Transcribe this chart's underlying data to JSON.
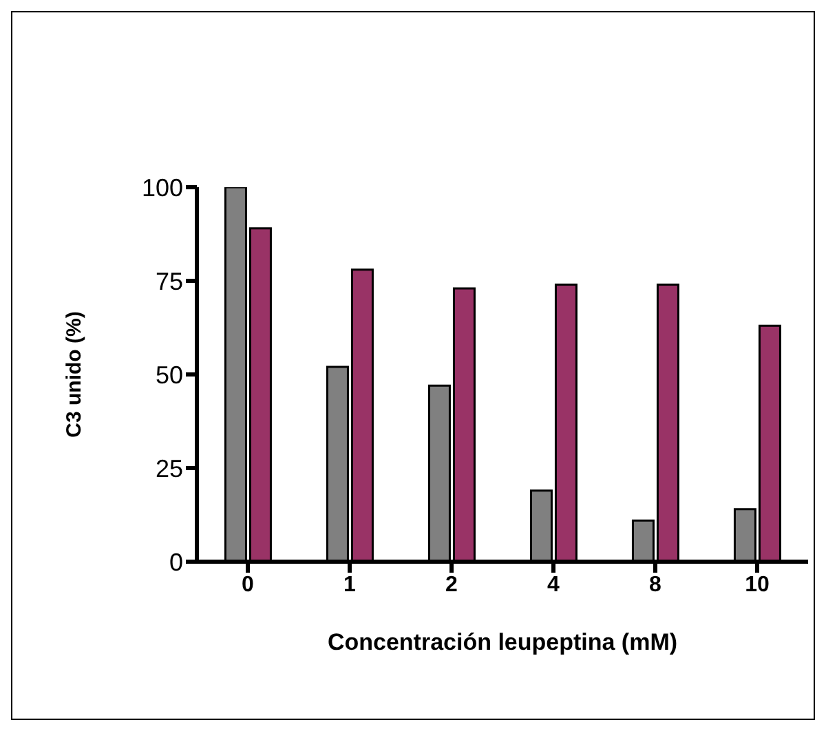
{
  "chart_data": {
    "type": "bar",
    "xlabel": "Concentración leupeptina (mM)",
    "ylabel": "C3 unido (%)",
    "categories": [
      "0",
      "1",
      "2",
      "4",
      "8",
      "10"
    ],
    "series": [
      {
        "color": "#808080",
        "values": [
          100,
          52,
          47,
          19,
          11,
          14
        ]
      },
      {
        "color": "#993366",
        "values": [
          89,
          78,
          73,
          74,
          74,
          63
        ]
      }
    ],
    "ylim": [
      0,
      100
    ],
    "yticks": [
      0,
      25,
      50,
      75,
      100
    ],
    "grid": false,
    "legend": false
  }
}
